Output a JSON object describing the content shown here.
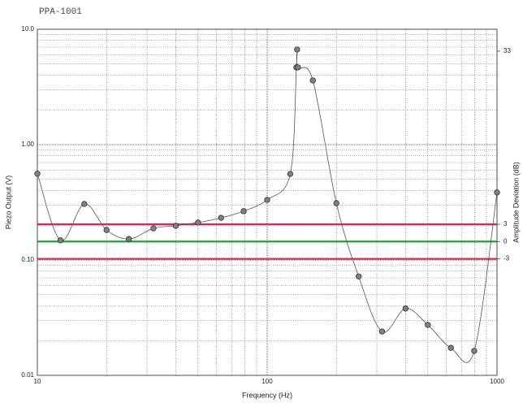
{
  "chart_data": {
    "type": "line",
    "title": "PPA-1001",
    "x_label": "Frequency (Hz)",
    "y_label": "Piezo Output (V)",
    "y2_label": "Amplitude Deviation (dB)",
    "log_x": true,
    "log_y": true,
    "grid": true,
    "xlim": [
      10,
      1000
    ],
    "xticks": [
      10,
      100,
      1000
    ],
    "xminor_ticks": [
      20,
      30,
      40,
      50,
      60,
      70,
      80,
      90,
      200,
      300,
      400,
      500,
      600,
      700,
      800,
      900
    ],
    "ylim": [
      0.01,
      10
    ],
    "yticks": [
      0.01,
      {
        "value": 0.1,
        "label": "0.10"
      },
      {
        "value": 1,
        "label": "1.00"
      },
      {
        "value": 10,
        "label": "10.0"
      }
    ],
    "yminor_ticks": [
      0.02,
      0.03,
      0.04,
      0.05,
      0.06,
      0.07,
      0.08,
      0.09,
      0.2,
      0.3,
      0.4,
      0.5,
      0.6,
      0.7,
      0.8,
      0.9,
      2,
      3,
      4,
      5,
      6,
      7,
      8,
      9
    ],
    "y2lim": [
      -23.2,
      36.8
    ],
    "y2ticks": [
      -3,
      0,
      3,
      33
    ],
    "reference_lines": [
      {
        "value": 3,
        "axis": "y2",
        "color": "#e3264d"
      },
      {
        "value": 0,
        "axis": "y2",
        "color": "#23a03c"
      },
      {
        "value": -3,
        "axis": "y2",
        "color": "#e3264d"
      }
    ],
    "series": [
      {
        "color": "#555555",
        "marker_color": "#808080",
        "x": [
          10,
          12.6,
          16,
          20,
          25,
          32,
          40,
          50,
          63,
          79,
          100,
          126,
          134,
          135,
          136,
          158,
          200,
          250,
          316,
          400,
          500,
          630,
          796,
          1000
        ],
        "values": [
          0.56,
          0.148,
          0.306,
          0.182,
          0.152,
          0.188,
          0.198,
          0.211,
          0.232,
          0.265,
          0.332,
          0.557,
          4.67,
          6.67,
          4.67,
          3.6,
          0.311,
          0.072,
          0.024,
          0.038,
          0.0274,
          0.0173,
          0.0163,
          0.385
        ]
      }
    ]
  }
}
